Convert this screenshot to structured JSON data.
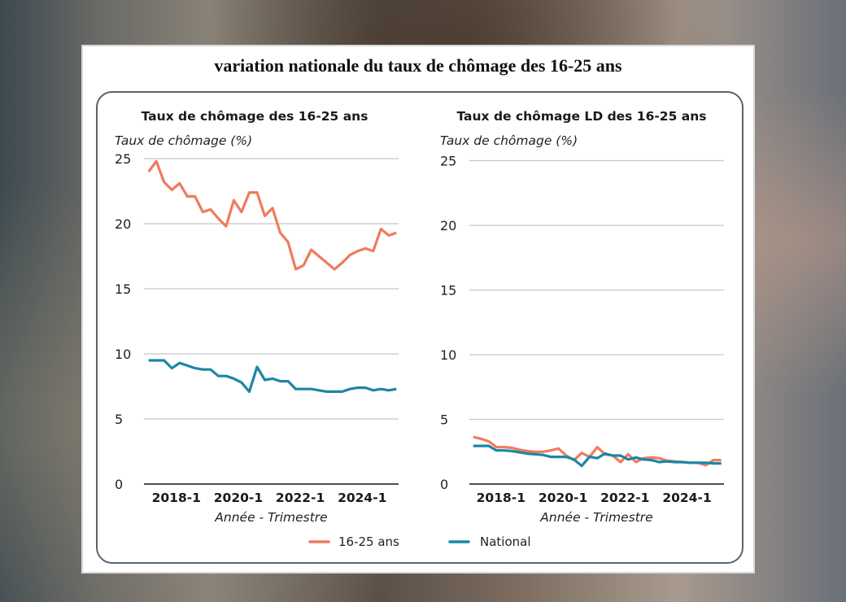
{
  "title": "variation nationale du taux de chômage des 16-25 ans",
  "colors": {
    "youth": "#ef7b5e",
    "national": "#1c87a3",
    "grid": "#c4c8cc",
    "axis": "#4a5058"
  },
  "legend": [
    {
      "label": "16-25 ans",
      "color": "#ef7b5e"
    },
    {
      "label": "National",
      "color": "#1c87a3"
    }
  ],
  "chart_data": [
    {
      "type": "line",
      "title": "Taux de chômage des 16-25 ans",
      "ylabel": "Taux de chômage (%)",
      "xlabel": "Année - Trimestre",
      "ylim": [
        0,
        25
      ],
      "yticks": [
        0,
        5,
        10,
        15,
        20,
        25
      ],
      "x_start": "2017-1",
      "xticks": [
        {
          "index": 4,
          "label": "2018-1"
        },
        {
          "index": 12,
          "label": "2020-1"
        },
        {
          "index": 20,
          "label": "2022-1"
        },
        {
          "index": 28,
          "label": "2024-1"
        }
      ],
      "grid": true,
      "series": [
        {
          "name": "16-25 ans",
          "values": [
            24.0,
            24.8,
            23.2,
            22.6,
            23.1,
            22.1,
            22.1,
            20.9,
            21.1,
            20.4,
            19.8,
            21.8,
            20.9,
            22.4,
            22.4,
            20.6,
            21.2,
            19.3,
            18.6,
            16.5,
            16.8,
            18.0,
            17.5,
            17.0,
            16.5,
            17.0,
            17.6,
            17.9,
            18.1,
            17.9,
            19.6,
            19.1,
            19.3
          ]
        },
        {
          "name": "National",
          "values": [
            9.5,
            9.5,
            9.5,
            8.9,
            9.3,
            9.1,
            8.9,
            8.8,
            8.8,
            8.3,
            8.3,
            8.1,
            7.8,
            7.1,
            9.0,
            8.0,
            8.1,
            7.9,
            7.9,
            7.3,
            7.3,
            7.3,
            7.2,
            7.1,
            7.1,
            7.1,
            7.3,
            7.4,
            7.4,
            7.2,
            7.3,
            7.2,
            7.3
          ]
        }
      ]
    },
    {
      "type": "line",
      "title": "Taux de chômage LD des 16-25 ans",
      "ylabel": "Taux de chômage (%)",
      "xlabel": "Année - Trimestre",
      "ylim": [
        0,
        25
      ],
      "yticks": [
        0,
        5,
        10,
        15,
        20,
        25
      ],
      "x_start": "2017-1",
      "xticks": [
        {
          "index": 4,
          "label": "2018-1"
        },
        {
          "index": 12,
          "label": "2020-1"
        },
        {
          "index": 20,
          "label": "2022-1"
        },
        {
          "index": 28,
          "label": "2024-1"
        }
      ],
      "grid": true,
      "series": [
        {
          "name": "16-25 ans",
          "values": [
            3.65,
            3.5,
            3.3,
            2.85,
            2.85,
            2.8,
            2.65,
            2.55,
            2.5,
            2.5,
            2.6,
            2.75,
            2.2,
            1.85,
            2.4,
            2.1,
            2.85,
            2.3,
            2.2,
            1.7,
            2.3,
            1.7,
            2.0,
            2.05,
            2.0,
            1.8,
            1.75,
            1.7,
            1.65,
            1.65,
            1.45,
            1.85,
            1.85
          ]
        },
        {
          "name": "National",
          "values": [
            2.95,
            2.95,
            2.95,
            2.6,
            2.6,
            2.55,
            2.45,
            2.35,
            2.3,
            2.25,
            2.1,
            2.1,
            2.1,
            1.9,
            1.4,
            2.1,
            2.0,
            2.35,
            2.2,
            2.2,
            1.9,
            2.05,
            1.9,
            1.85,
            1.7,
            1.75,
            1.7,
            1.7,
            1.65,
            1.65,
            1.65,
            1.6,
            1.6
          ]
        }
      ]
    }
  ]
}
